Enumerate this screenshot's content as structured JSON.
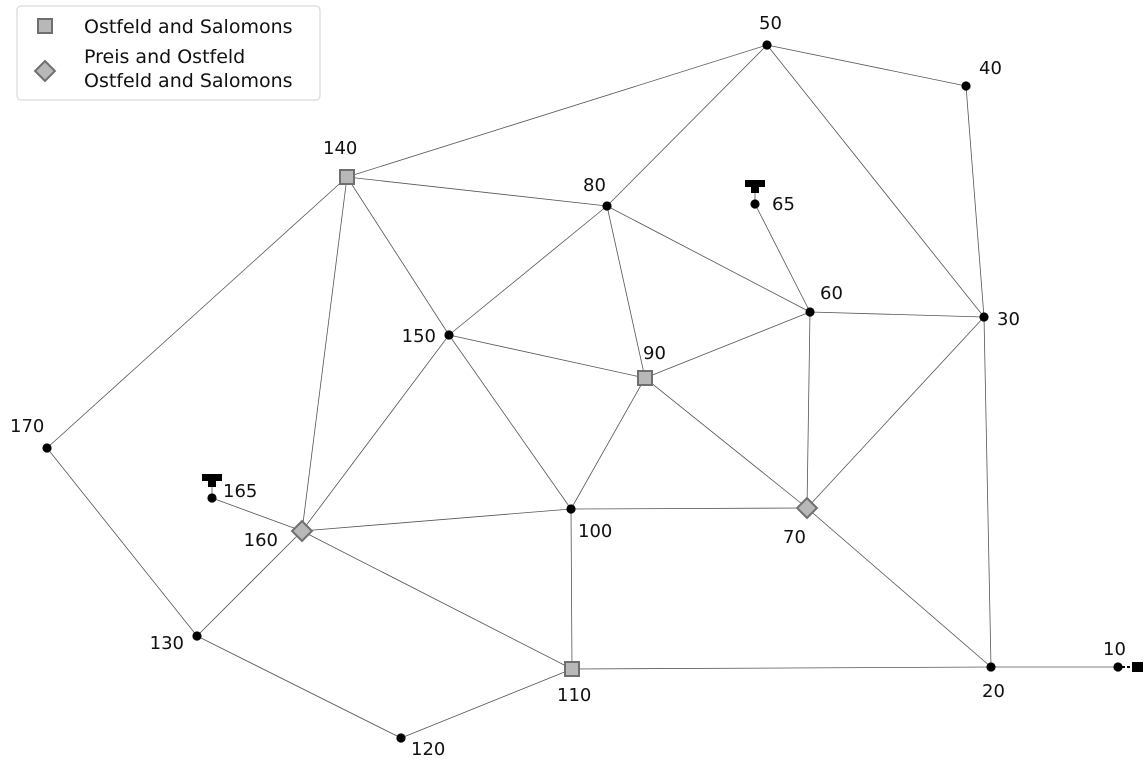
{
  "legend": {
    "square_label": "Ostfeld and Salomons",
    "diamond_label_line1": "Preis and Ostfeld",
    "diamond_label_line2": "Ostfeld and Salomons"
  },
  "nodes": [
    {
      "id": "10",
      "label": "10",
      "marker": "dot"
    },
    {
      "id": "20",
      "label": "20",
      "marker": "dot"
    },
    {
      "id": "30",
      "label": "30",
      "marker": "dot"
    },
    {
      "id": "40",
      "label": "40",
      "marker": "dot"
    },
    {
      "id": "50",
      "label": "50",
      "marker": "dot"
    },
    {
      "id": "60",
      "label": "60",
      "marker": "dot"
    },
    {
      "id": "65",
      "label": "65",
      "marker": "dot",
      "tank": true
    },
    {
      "id": "70",
      "label": "70",
      "marker": "diamond"
    },
    {
      "id": "80",
      "label": "80",
      "marker": "dot"
    },
    {
      "id": "90",
      "label": "90",
      "marker": "square"
    },
    {
      "id": "100",
      "label": "100",
      "marker": "dot"
    },
    {
      "id": "110",
      "label": "110",
      "marker": "square"
    },
    {
      "id": "120",
      "label": "120",
      "marker": "dot"
    },
    {
      "id": "130",
      "label": "130",
      "marker": "dot"
    },
    {
      "id": "140",
      "label": "140",
      "marker": "square"
    },
    {
      "id": "150",
      "label": "150",
      "marker": "dot"
    },
    {
      "id": "160",
      "label": "160",
      "marker": "diamond"
    },
    {
      "id": "165",
      "label": "165",
      "marker": "dot",
      "tank": true
    },
    {
      "id": "170",
      "label": "170",
      "marker": "dot"
    }
  ],
  "links": [
    [
      "50",
      "40"
    ],
    [
      "40",
      "30"
    ],
    [
      "50",
      "30"
    ],
    [
      "50",
      "80"
    ],
    [
      "50",
      "140"
    ],
    [
      "140",
      "80"
    ],
    [
      "140",
      "150"
    ],
    [
      "140",
      "160"
    ],
    [
      "140",
      "170"
    ],
    [
      "80",
      "150"
    ],
    [
      "80",
      "90"
    ],
    [
      "80",
      "60"
    ],
    [
      "65",
      "60"
    ],
    [
      "60",
      "30"
    ],
    [
      "60",
      "90"
    ],
    [
      "60",
      "70"
    ],
    [
      "30",
      "70"
    ],
    [
      "30",
      "20"
    ],
    [
      "150",
      "90"
    ],
    [
      "150",
      "100"
    ],
    [
      "150",
      "160"
    ],
    [
      "90",
      "100"
    ],
    [
      "90",
      "70"
    ],
    [
      "100",
      "70"
    ],
    [
      "100",
      "160"
    ],
    [
      "100",
      "110"
    ],
    [
      "70",
      "20"
    ],
    [
      "20",
      "10"
    ],
    [
      "110",
      "20"
    ],
    [
      "160",
      "110"
    ],
    [
      "160",
      "130"
    ],
    [
      "165",
      "160"
    ],
    [
      "170",
      "130"
    ],
    [
      "130",
      "120"
    ],
    [
      "120",
      "110"
    ]
  ],
  "source": {
    "node": "10",
    "marker": "reservoir"
  }
}
